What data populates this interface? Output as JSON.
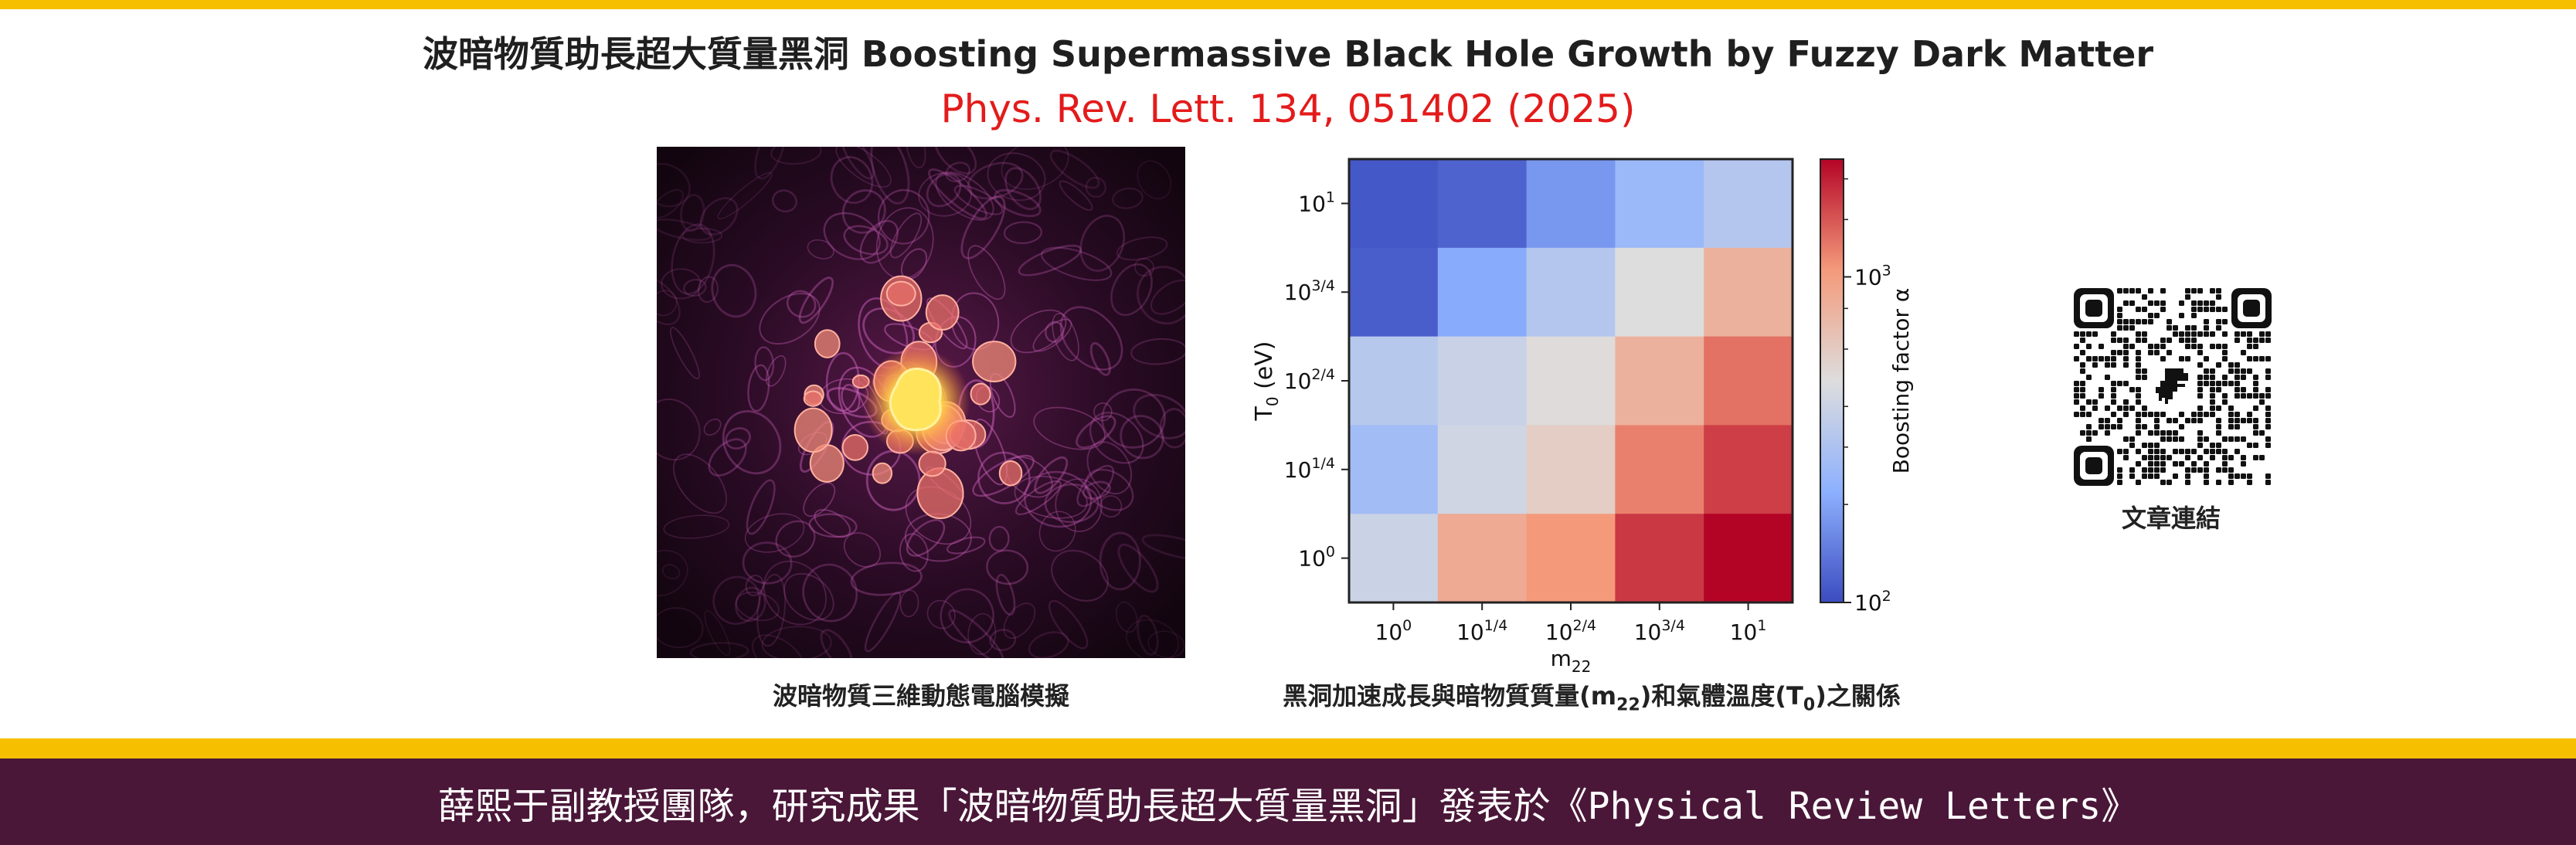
{
  "header": {
    "title": "波暗物質助長超大質量黑洞 Boosting Supermassive Black Hole Growth by Fuzzy Dark Matter",
    "journal": "Phys. Rev. Lett.  134, 051402 (2025)"
  },
  "figure_left": {
    "caption": "波暗物質三維動態電腦模擬",
    "colors": {
      "background": "#150712",
      "filament": "#c05ab0",
      "core": "#ffd84a"
    }
  },
  "figure_right": {
    "caption_prefix": "黑洞加速成長與暗物質質量(m",
    "caption_sub1": "22",
    "caption_mid": ")和氣體溫度(T",
    "caption_sub2": "0",
    "caption_suffix": ")之關係"
  },
  "chart_data": {
    "type": "heatmap",
    "x_ticks": [
      "10^0",
      "10^1/4",
      "10^2/4",
      "10^3/4",
      "10^1"
    ],
    "y_ticks": [
      "10^0",
      "10^1/4",
      "10^2/4",
      "10^3/4",
      "10^1"
    ],
    "xlabel_main": "m",
    "xlabel_sub": "22",
    "ylabel_main": "T",
    "ylabel_sub": "0",
    "ylabel_unit": " (eV)",
    "colorbar_label": "Boosting factor α",
    "colorbar_ticks": [
      {
        "base": "10",
        "exp": "3",
        "value": 1000
      },
      {
        "base": "10",
        "exp": "2",
        "value": 100
      }
    ],
    "colorbar_range": [
      100,
      2300
    ],
    "colorbar_log": true,
    "colormap": "coolwarm",
    "values_by_row_from_top": [
      [
        110,
        120,
        180,
        250,
        320
      ],
      [
        115,
        210,
        320,
        480,
        800
      ],
      [
        330,
        390,
        490,
        800,
        1300
      ],
      [
        270,
        420,
        580,
        1200,
        1700
      ],
      [
        400,
        870,
        1050,
        1750,
        2300
      ]
    ]
  },
  "qr": {
    "label": "文章連結"
  },
  "footer": {
    "text_cjk": "薛熙于副教授團隊，研究成果「波暗物質助長超大質量黑洞」發表於《",
    "text_latin": "Physical Review Letters",
    "text_end": "》"
  }
}
